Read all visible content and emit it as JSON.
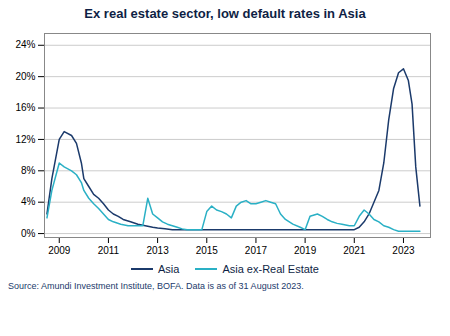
{
  "chart_data": {
    "type": "line",
    "title": "Ex real estate sector, low default rates in Asia",
    "caption": "Source: Amundi Investment Institute, BOFA. Data is as of 31 August 2023.",
    "xlim": [
      2008.4,
      2024.1
    ],
    "xticks": [
      2009,
      2011,
      2013,
      2015,
      2017,
      2019,
      2021,
      2023
    ],
    "ylim": [
      -0.005,
      0.255
    ],
    "yticks": [
      {
        "value": 0.0,
        "label": "0%"
      },
      {
        "value": 0.04,
        "label": "4%"
      },
      {
        "value": 0.08,
        "label": "8%"
      },
      {
        "value": 0.12,
        "label": "12%"
      },
      {
        "value": 0.16,
        "label": "16%"
      },
      {
        "value": 0.2,
        "label": "20%"
      },
      {
        "value": 0.24,
        "label": "24%"
      }
    ],
    "grid": true,
    "legend": "bottom",
    "series": [
      {
        "name": "Asia",
        "color": "#1b3a6b",
        "x": [
          2008.5,
          2008.7,
          2009.0,
          2009.2,
          2009.5,
          2009.7,
          2009.9,
          2010.0,
          2010.2,
          2010.4,
          2010.6,
          2010.8,
          2011.0,
          2011.2,
          2011.4,
          2011.6,
          2011.9,
          2012.2,
          2012.5,
          2012.8,
          2013.0,
          2013.3,
          2013.6,
          2014.0,
          2014.3,
          2014.6,
          2015.0,
          2015.3,
          2015.6,
          2015.9,
          2016.2,
          2016.5,
          2016.8,
          2017.0,
          2017.3,
          2017.6,
          2017.9,
          2018.2,
          2018.5,
          2018.8,
          2019.0,
          2019.3,
          2019.5,
          2019.7,
          2019.9,
          2020.1,
          2020.3,
          2020.5,
          2020.7,
          2020.9,
          2021.0,
          2021.2,
          2021.4,
          2021.6,
          2021.8,
          2022.0,
          2022.2,
          2022.4,
          2022.6,
          2022.8,
          2023.0,
          2023.2,
          2023.35,
          2023.5,
          2023.67
        ],
        "values": [
          0.025,
          0.07,
          0.12,
          0.13,
          0.125,
          0.115,
          0.09,
          0.07,
          0.06,
          0.05,
          0.045,
          0.038,
          0.03,
          0.025,
          0.022,
          0.018,
          0.015,
          0.012,
          0.01,
          0.008,
          0.007,
          0.006,
          0.005,
          0.005,
          0.005,
          0.005,
          0.005,
          0.005,
          0.005,
          0.005,
          0.005,
          0.005,
          0.005,
          0.005,
          0.005,
          0.005,
          0.005,
          0.005,
          0.005,
          0.005,
          0.005,
          0.005,
          0.005,
          0.005,
          0.005,
          0.005,
          0.005,
          0.005,
          0.005,
          0.005,
          0.005,
          0.008,
          0.015,
          0.025,
          0.04,
          0.055,
          0.09,
          0.145,
          0.185,
          0.205,
          0.21,
          0.195,
          0.165,
          0.085,
          0.035
        ]
      },
      {
        "name": "Asia ex-Real Estate",
        "color": "#2ab0c5",
        "x": [
          2008.5,
          2008.7,
          2009.0,
          2009.2,
          2009.5,
          2009.7,
          2009.9,
          2010.0,
          2010.2,
          2010.4,
          2010.6,
          2010.8,
          2011.0,
          2011.2,
          2011.5,
          2011.8,
          2012.0,
          2012.2,
          2012.4,
          2012.6,
          2012.8,
          2013.0,
          2013.2,
          2013.4,
          2013.6,
          2013.8,
          2014.0,
          2014.2,
          2014.5,
          2014.8,
          2015.0,
          2015.2,
          2015.4,
          2015.6,
          2015.8,
          2016.0,
          2016.2,
          2016.4,
          2016.6,
          2016.8,
          2017.0,
          2017.2,
          2017.4,
          2017.6,
          2017.8,
          2018.0,
          2018.2,
          2018.5,
          2018.8,
          2019.0,
          2019.2,
          2019.5,
          2019.7,
          2019.9,
          2020.1,
          2020.3,
          2020.5,
          2020.8,
          2021.0,
          2021.2,
          2021.4,
          2021.6,
          2021.8,
          2022.0,
          2022.2,
          2022.4,
          2022.6,
          2022.8,
          2023.0,
          2023.2,
          2023.5,
          2023.67
        ],
        "values": [
          0.02,
          0.055,
          0.09,
          0.085,
          0.08,
          0.075,
          0.065,
          0.055,
          0.045,
          0.038,
          0.032,
          0.025,
          0.018,
          0.015,
          0.012,
          0.01,
          0.01,
          0.01,
          0.01,
          0.045,
          0.025,
          0.02,
          0.015,
          0.012,
          0.01,
          0.008,
          0.006,
          0.005,
          0.005,
          0.005,
          0.028,
          0.035,
          0.03,
          0.028,
          0.025,
          0.02,
          0.035,
          0.04,
          0.042,
          0.038,
          0.038,
          0.04,
          0.042,
          0.04,
          0.038,
          0.025,
          0.018,
          0.012,
          0.008,
          0.005,
          0.022,
          0.025,
          0.022,
          0.018,
          0.015,
          0.013,
          0.012,
          0.01,
          0.01,
          0.022,
          0.03,
          0.025,
          0.018,
          0.015,
          0.01,
          0.008,
          0.005,
          0.003,
          0.003,
          0.003,
          0.003,
          0.003
        ]
      }
    ]
  }
}
